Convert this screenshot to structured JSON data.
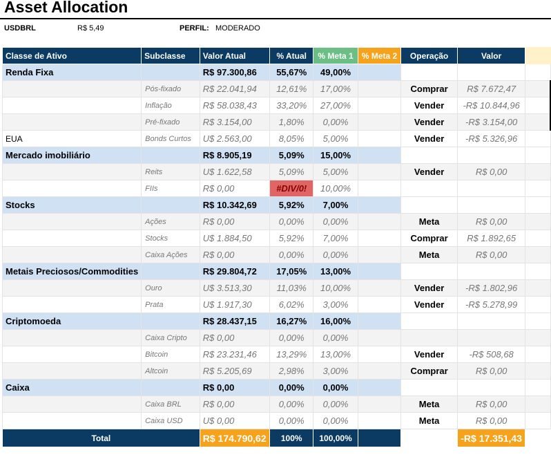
{
  "header": {
    "title": "Asset Allocation",
    "currency_label": "USDBRL",
    "currency_value": "R$ 5,49",
    "profile_label": "PERFIL:",
    "profile_value": "MODERADO"
  },
  "columns": [
    "Classe de Ativo",
    "Subclasse",
    "Valor Atual",
    "% Atual",
    "% Meta 1",
    "% Meta 2",
    "Operação",
    "Valor"
  ],
  "rows": [
    {
      "type": "class",
      "name": "Renda Fixa",
      "value": "R$ 97.300,86",
      "pct": "55,67%",
      "meta1": "49,00%"
    },
    {
      "type": "sub",
      "name": "Pós-fixado",
      "value": "R$ 22.041,94",
      "pct": "12,61%",
      "meta1": "17,00%",
      "op": "Comprar",
      "amount": "R$ 7.672,47"
    },
    {
      "type": "sub",
      "name": "Inflação",
      "value": "R$ 58.038,43",
      "pct": "33,20%",
      "meta1": "27,00%",
      "op": "Vender",
      "amount": "-R$ 10.844,96"
    },
    {
      "type": "sub",
      "name": "Pré-fixado",
      "value": "R$ 3.154,00",
      "pct": "1,80%",
      "meta1": "0,00%",
      "op": "Vender",
      "amount": "-R$ 3.154,00"
    },
    {
      "type": "sub",
      "cls": "EUA",
      "name": "Bonds Curtos",
      "value": "U$ 2.563,00",
      "pct": "8,05%",
      "meta1": "5,00%",
      "op": "Vender",
      "amount": "-R$ 5.326,96"
    },
    {
      "type": "class",
      "name": "Mercado imobiliário",
      "value": "R$ 8.905,19",
      "pct": "5,09%",
      "meta1": "15,00%"
    },
    {
      "type": "sub",
      "name": "Reits",
      "value": "U$ 1.622,58",
      "pct": "5,09%",
      "meta1": "5,00%",
      "op": "Vender",
      "amount": "R$ 0,00"
    },
    {
      "type": "sub",
      "name": "FIIs",
      "value": "R$ 0,00",
      "pct": "#DIV/0!",
      "meta1": "10,00%",
      "op": "",
      "amount": ""
    },
    {
      "type": "class",
      "name": "Stocks",
      "value": "R$ 10.342,69",
      "pct": "5,92%",
      "meta1": "7,00%"
    },
    {
      "type": "sub",
      "name": "Ações",
      "value": "R$ 0,00",
      "pct": "0,00%",
      "meta1": "0,00%",
      "op": "Meta",
      "amount": "R$ 0,00"
    },
    {
      "type": "sub",
      "name": "Stocks",
      "value": "U$ 1.884,50",
      "pct": "5,92%",
      "meta1": "7,00%",
      "op": "Comprar",
      "amount": "R$ 1.892,65"
    },
    {
      "type": "sub",
      "name": "Caixa Ações",
      "value": "R$ 0,00",
      "pct": "0,00%",
      "meta1": "0,00%",
      "op": "Meta",
      "amount": "R$ 0,00"
    },
    {
      "type": "class",
      "name": "Metais Preciosos/Commodities",
      "value": "R$ 29.804,72",
      "pct": "17,05%",
      "meta1": "13,00%"
    },
    {
      "type": "sub",
      "name": "Ouro",
      "value": "U$ 3.513,30",
      "pct": "11,03%",
      "meta1": "10,00%",
      "op": "Vender",
      "amount": "-R$ 1.802,96"
    },
    {
      "type": "sub",
      "name": "Prata",
      "value": "U$ 1.917,30",
      "pct": "6,02%",
      "meta1": "3,00%",
      "op": "Vender",
      "amount": "-R$ 5.278,99"
    },
    {
      "type": "class",
      "name": "Criptomoeda",
      "value": "R$ 28.437,15",
      "pct": "16,27%",
      "meta1": "16,00%"
    },
    {
      "type": "sub",
      "name": "Caixa Cripto",
      "value": "R$ 0,00",
      "pct": "0,00%",
      "meta1": "0,00%",
      "op": "",
      "amount": ""
    },
    {
      "type": "sub",
      "name": "Bitcoin",
      "value": "R$ 23.231,46",
      "pct": "13,29%",
      "meta1": "13,00%",
      "op": "Vender",
      "amount": "-R$ 508,68"
    },
    {
      "type": "sub",
      "name": "Altcoin",
      "value": "R$ 5.205,69",
      "pct": "2,98%",
      "meta1": "3,00%",
      "op": "Comprar",
      "amount": "R$ 0,00"
    },
    {
      "type": "class",
      "name": "Caixa",
      "value": "R$ 0,00",
      "pct": "0,00%",
      "meta1": "0,00%"
    },
    {
      "type": "sub",
      "name": "Caixa BRL",
      "value": "R$ 0,00",
      "pct": "0,00%",
      "meta1": "0,00%",
      "op": "Meta",
      "amount": "R$ 0,00"
    },
    {
      "type": "sub",
      "name": "Caixa USD",
      "value": "U$ 0,00",
      "pct": "0,00%",
      "meta1": "0,00%",
      "op": "Meta",
      "amount": "R$ 0,00"
    }
  ],
  "total": {
    "label": "Total",
    "value": "R$ 174.790,62",
    "pct": "100%",
    "meta1": "100,00%",
    "amount": "-R$ 17.351,43"
  },
  "colors": {
    "header_navy": "#0b3a63",
    "class_blue": "#cfe1f3",
    "meta1_green": "#6bbf84",
    "meta2_orange": "#f7a21b",
    "error_red": "#e06666"
  }
}
